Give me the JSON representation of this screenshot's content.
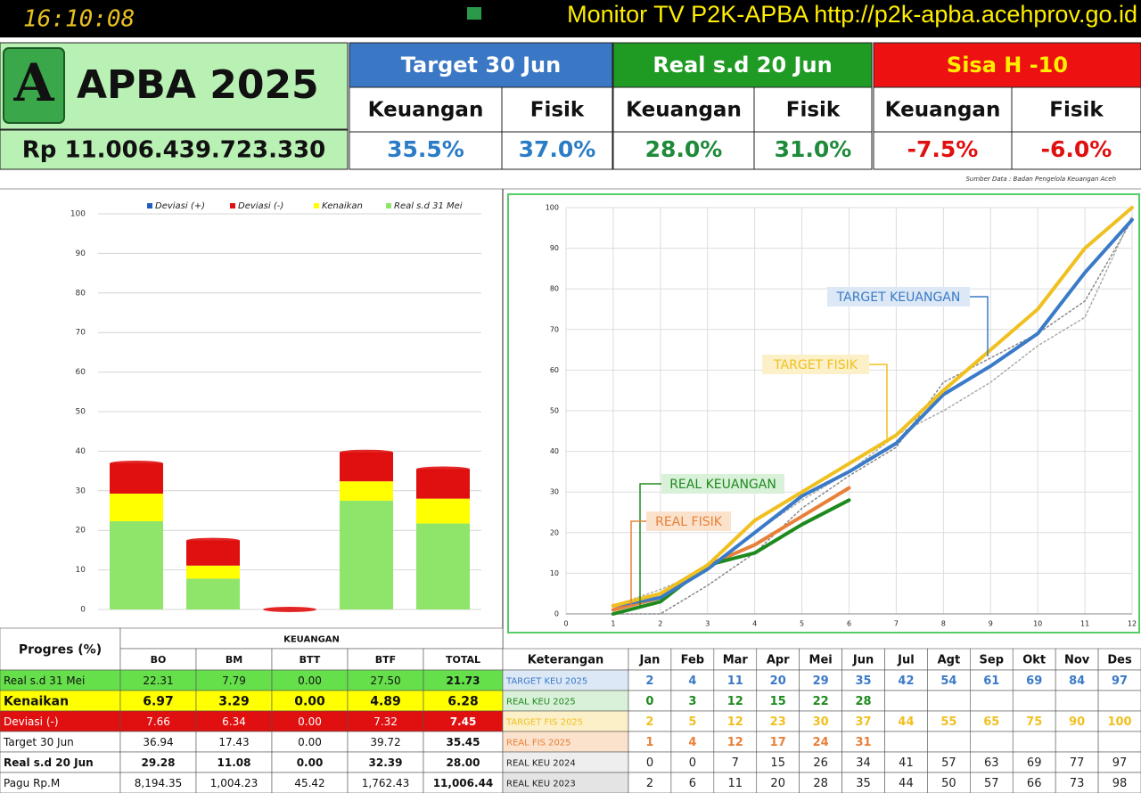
{
  "top_bar": {
    "clock": "16:10:08",
    "ticker": "Monitor TV P2K-APBA http://p2k-apba.acehprov.go.id"
  },
  "header": {
    "logo": "A",
    "title": "APBA 2025",
    "pagu": "Rp 11.006.439.723.330",
    "sub_labels": [
      "Keuangan",
      "Fisik"
    ],
    "groups": [
      {
        "label": "Target 30 Jun",
        "keuangan": "35.5%",
        "fisik": "37.0%"
      },
      {
        "label": "Real s.d 20 Jun",
        "keuangan": "28.0%",
        "fisik": "31.0%"
      },
      {
        "label": "Sisa H -10",
        "keuangan": "-7.5%",
        "fisik": "-6.0%"
      }
    ]
  },
  "source": "Sumber Data : Badan Pengelola Keuangan Aceh",
  "chart_data": [
    {
      "type": "stacked-bar",
      "categories": [
        "BO",
        "BM",
        "BTT",
        "BTF",
        "TOTAL"
      ],
      "series": [
        {
          "name": "Deviasi (+)",
          "color": "#1f5fbf",
          "values": [
            0,
            0,
            0,
            0,
            0
          ]
        },
        {
          "name": "Deviasi  (-)",
          "color": "#e01010",
          "values": [
            7.66,
            6.34,
            0,
            7.32,
            7.45
          ],
          "value_labels": [
            "7.66",
            "6.34",
            "0.00",
            "7.32",
            "7.45"
          ]
        },
        {
          "name": "Kenaikan",
          "color": "#ffff00",
          "values": [
            6.97,
            3.29,
            0,
            4.89,
            6.28
          ],
          "value_labels": [
            "6.97",
            "3.29",
            "0.00",
            "4.89",
            "6.28"
          ]
        },
        {
          "name": "Real s.d 31 Mei",
          "color": "#8fe46a",
          "values": [
            22.31,
            7.79,
            0,
            27.5,
            21.73
          ],
          "value_labels": [
            "22.31",
            "7.79",
            "0.00",
            "27.50",
            "21.73"
          ]
        }
      ],
      "ylim": [
        0,
        100
      ],
      "yticks": [
        0,
        10,
        20,
        30,
        40,
        50,
        60,
        70,
        80,
        90,
        100
      ],
      "grid": true
    },
    {
      "type": "line",
      "x": [
        1,
        2,
        3,
        4,
        5,
        6,
        7,
        8,
        9,
        10,
        11,
        12
      ],
      "series": [
        {
          "name": "TARGET KEU 2025",
          "color": "#3a7ac7",
          "style": "solid",
          "values": [
            2,
            4,
            11,
            20,
            29,
            35,
            42,
            54,
            61,
            69,
            84,
            97
          ]
        },
        {
          "name": "TARGET FIS 2025",
          "color": "#f0c020",
          "style": "solid",
          "values": [
            2,
            5,
            12,
            23,
            30,
            37,
            44,
            55,
            65,
            75,
            90,
            100
          ]
        },
        {
          "name": "REAL KEU 2025",
          "color": "#1e8a1e",
          "style": "solid",
          "values": [
            0,
            3,
            12,
            15,
            22,
            28,
            null,
            null,
            null,
            null,
            null,
            null
          ]
        },
        {
          "name": "REAL FIS 2025",
          "color": "#e8803a",
          "style": "solid",
          "values": [
            1,
            4,
            12,
            17,
            24,
            31,
            null,
            null,
            null,
            null,
            null,
            null
          ]
        },
        {
          "name": "REAL KEU 2024",
          "color": "#888888",
          "style": "dotted",
          "values": [
            0,
            0,
            7,
            15,
            26,
            34,
            41,
            57,
            63,
            69,
            77,
            97
          ]
        },
        {
          "name": "REAL KEU 2023",
          "color": "#aaaaaa",
          "style": "dotted",
          "values": [
            2,
            6,
            11,
            20,
            28,
            35,
            44,
            50,
            57,
            66,
            73,
            98
          ]
        }
      ],
      "annotations": [
        "TARGET KEUANGAN",
        "TARGET FISIK",
        "REAL KEUANGAN",
        "REAL FISIK"
      ],
      "xlim": [
        0,
        12
      ],
      "xticks": [
        0,
        1,
        2,
        3,
        4,
        5,
        6,
        7,
        8,
        9,
        10,
        11,
        12
      ],
      "ylim": [
        0,
        100
      ],
      "yticks": [
        0,
        10,
        20,
        30,
        40,
        50,
        60,
        70,
        80,
        90,
        100
      ],
      "grid": true
    }
  ],
  "table_left": {
    "title": "Progres (%)",
    "group": "KEUANGAN",
    "rows": [
      [
        "Target 30 Jun",
        "36.94",
        "17.43",
        "0.00",
        "39.72",
        "35.45"
      ],
      [
        "Real s.d 20 Jun",
        "29.28",
        "11.08",
        "0.00",
        "32.39",
        "28.00"
      ],
      [
        "Pagu Rp.M",
        "8,194.35",
        "1,004.23",
        "45.42",
        "1,762.43",
        "11,006.44"
      ]
    ]
  },
  "table_right": {
    "title": "Keterangan",
    "months": [
      "Jan",
      "Feb",
      "Mar",
      "Apr",
      "Mei",
      "Jun",
      "Jul",
      "Agt",
      "Sep",
      "Okt",
      "Nov",
      "Des"
    ]
  }
}
